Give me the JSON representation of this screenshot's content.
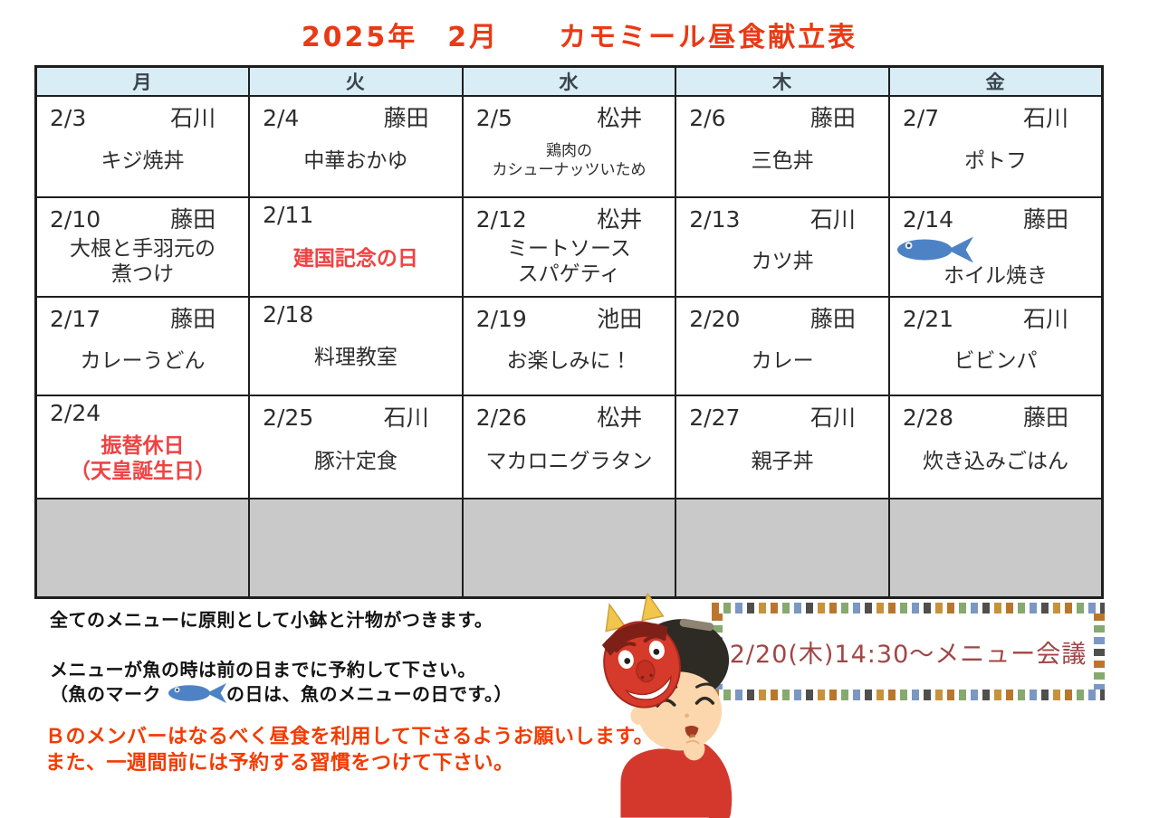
{
  "title": "2025年　2月　　カモミール昼食献立表",
  "calendar": {
    "headers": [
      "月",
      "火",
      "水",
      "木",
      "金"
    ],
    "weeks": [
      [
        {
          "date": "2/3",
          "duty": "石川",
          "menu": [
            "キジ焼丼"
          ]
        },
        {
          "date": "2/4",
          "duty": "藤田",
          "menu": [
            "中華おかゆ"
          ]
        },
        {
          "date": "2/5",
          "duty": "松井",
          "menu": [
            "鶏肉の",
            "カシューナッツいため"
          ],
          "small": true
        },
        {
          "date": "2/6",
          "duty": "藤田",
          "menu": [
            "三色丼"
          ]
        },
        {
          "date": "2/7",
          "duty": "石川",
          "menu": [
            "ポトフ"
          ]
        }
      ],
      [
        {
          "date": "2/10",
          "duty": "藤田",
          "menu": [
            "大根と手羽元の",
            "煮つけ"
          ]
        },
        {
          "date": "2/11",
          "duty": "",
          "menu": [
            "建国記念の日"
          ],
          "holiday": true
        },
        {
          "date": "2/12",
          "duty": "松井",
          "menu": [
            "ミートソース",
            "スパゲティ"
          ]
        },
        {
          "date": "2/13",
          "duty": "石川",
          "menu": [
            "カツ丼"
          ]
        },
        {
          "date": "2/14",
          "duty": "藤田",
          "menu": [
            "ホイル焼き"
          ],
          "fish": true
        }
      ],
      [
        {
          "date": "2/17",
          "duty": "藤田",
          "menu": [
            "カレーうどん"
          ]
        },
        {
          "date": "2/18",
          "duty": "",
          "menu": [
            "料理教室"
          ]
        },
        {
          "date": "2/19",
          "duty": "池田",
          "menu": [
            "お楽しみに！"
          ]
        },
        {
          "date": "2/20",
          "duty": "藤田",
          "menu": [
            "カレー"
          ]
        },
        {
          "date": "2/21",
          "duty": "石川",
          "menu": [
            "ビビンパ"
          ]
        }
      ],
      [
        {
          "date": "2/24",
          "duty": "",
          "menu": [
            "振替休日",
            "（天皇誕生日）"
          ],
          "holiday": true
        },
        {
          "date": "2/25",
          "duty": "石川",
          "menu": [
            "豚汁定食"
          ]
        },
        {
          "date": "2/26",
          "duty": "松井",
          "menu": [
            "マカロニグラタン"
          ]
        },
        {
          "date": "2/27",
          "duty": "石川",
          "menu": [
            "親子丼"
          ]
        },
        {
          "date": "2/28",
          "duty": "藤田",
          "menu": [
            "炊き込みごはん"
          ]
        }
      ]
    ],
    "empty_trailing_row_cells": 5
  },
  "notes": {
    "side_dish": "全てのメニューに原則として小鉢と汁物がつきます。",
    "fish_reserve": "メニューが魚の時は前の日までに予約して下さい。",
    "fish_mark_prefix": "（魚のマーク",
    "fish_mark_suffix": "の日は、魚のメニューの日です。）",
    "request_line1": "Ｂのメンバーはなるべく昼食を利用して下さるようお願いします。",
    "request_line2": "また、一週間前には予約する習慣をつけて下さい。"
  },
  "meeting": {
    "text": "2/20(木)14:30～メニュー会議"
  },
  "icons": {
    "fish": "fish-icon",
    "character": "boy-wearing-oni-mask-eating-beans"
  },
  "colors": {
    "title": "#e93a15",
    "holiday_red": "#ef4343",
    "request_orange": "#f33b00",
    "meeting_text": "#a04646",
    "header_bg": "#d9edf6",
    "empty_row_bg": "#c9c9c9",
    "fish_blue": "#4d83c4",
    "border": "#1e1e1e"
  }
}
